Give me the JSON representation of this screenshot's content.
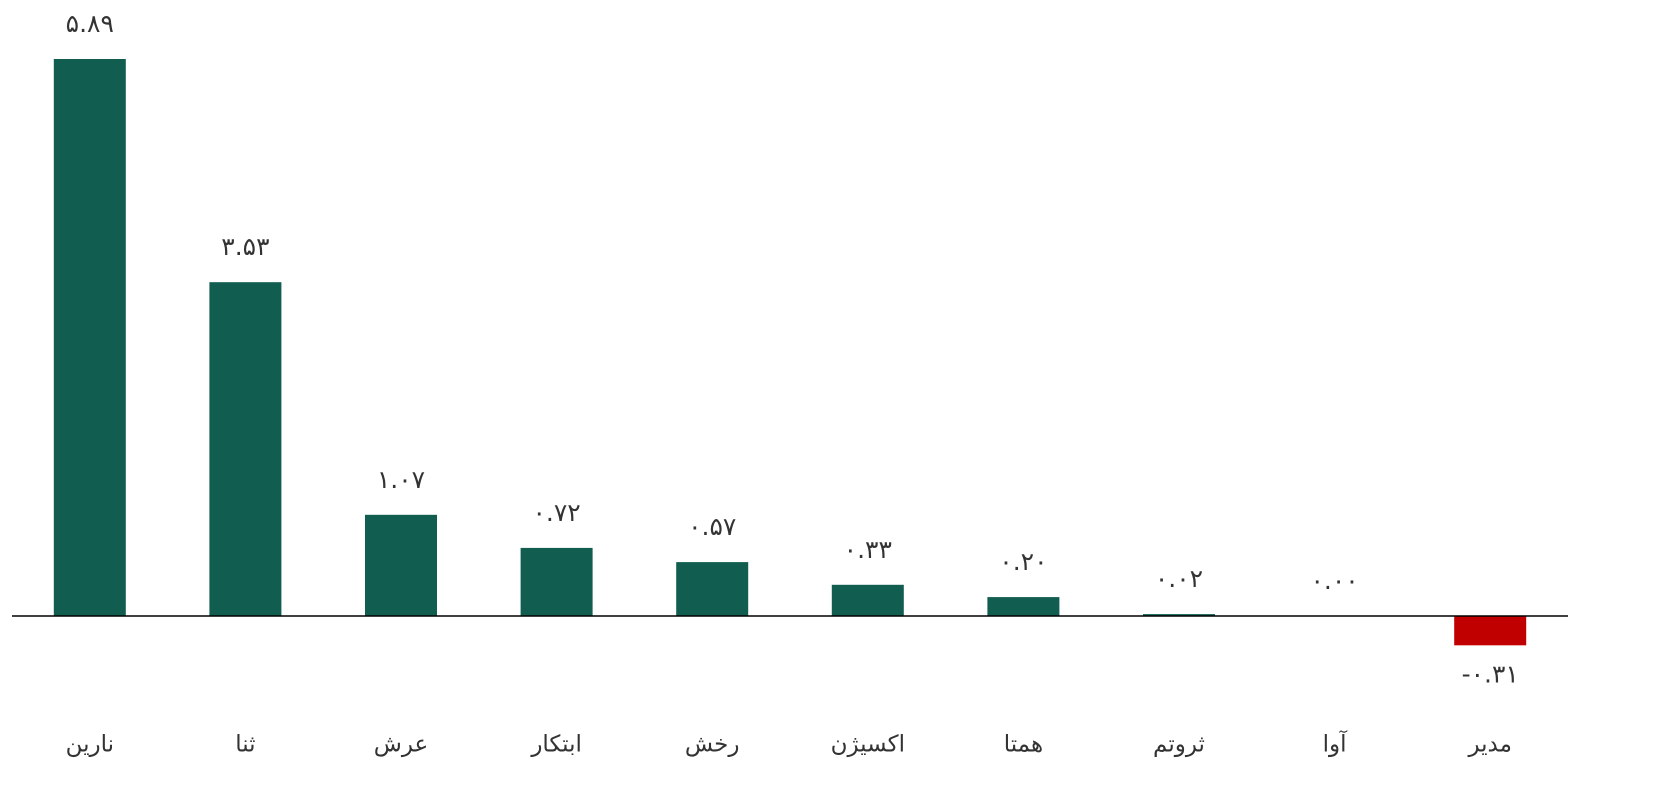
{
  "chart_data": {
    "type": "bar",
    "categories": [
      "نارین",
      "ثنا",
      "عرش",
      "ابتکار",
      "رخش",
      "اکسیژن",
      "همتا",
      "ثروتم",
      "آوا",
      "مدیر"
    ],
    "values": [
      5.89,
      3.53,
      1.07,
      0.72,
      0.57,
      0.33,
      0.2,
      0.02,
      0.0,
      -0.31
    ],
    "value_labels": [
      "۵.۸۹",
      "۳.۵۳",
      "۱.۰۷",
      "۰.۷۲",
      "۰.۵۷",
      "۰.۳۳",
      "۰.۲۰",
      "۰.۰۲",
      "۰.۰۰",
      "-۰.۳۱"
    ],
    "color": "#115e51",
    "negative_color": "#c00000"
  }
}
